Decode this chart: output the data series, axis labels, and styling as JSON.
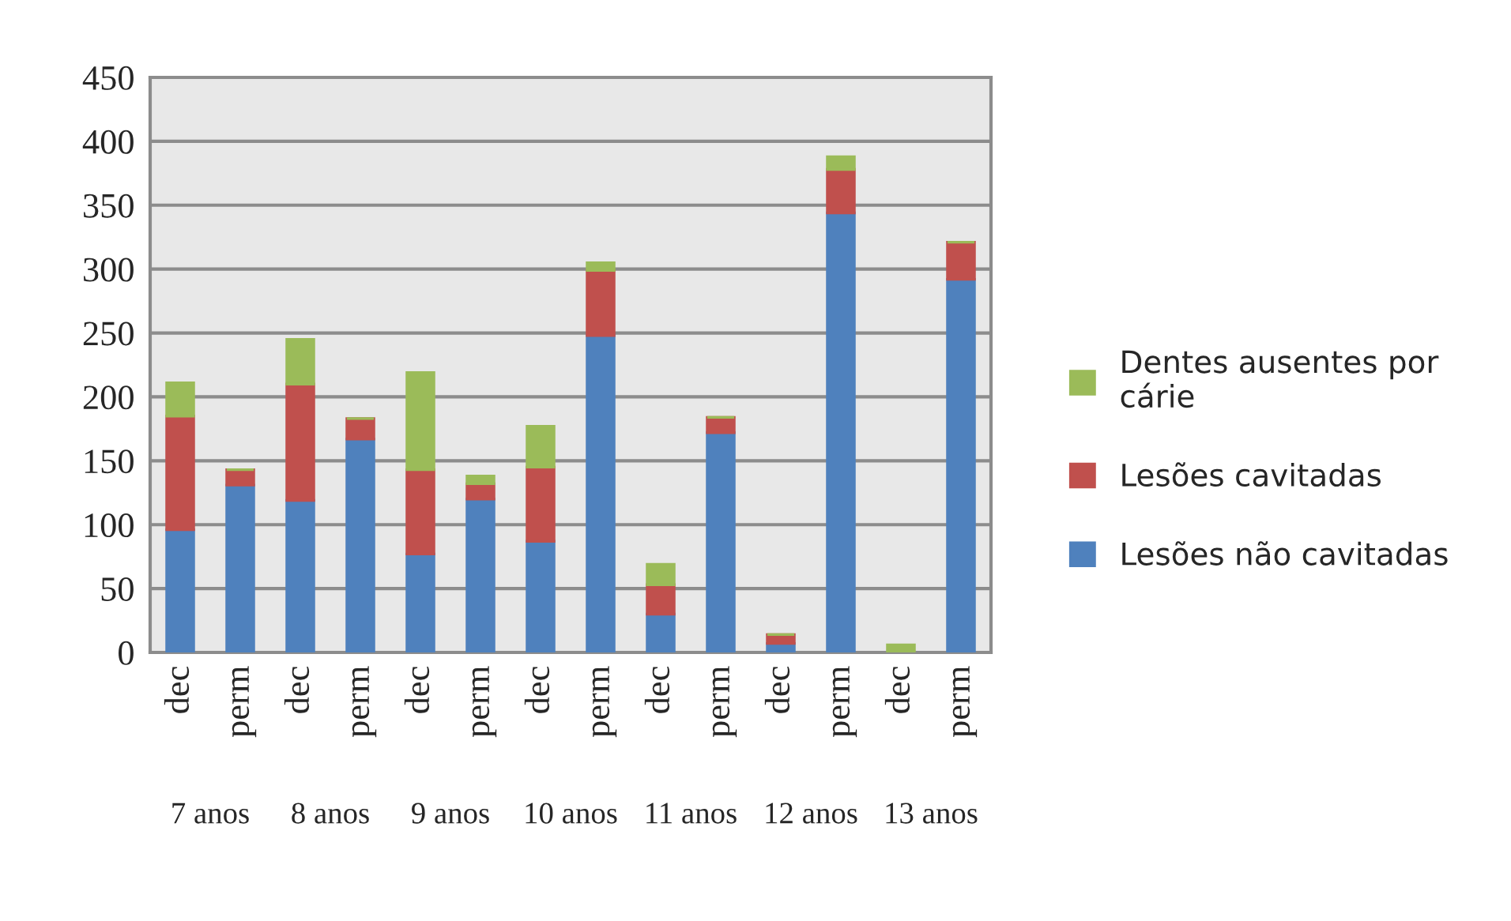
{
  "chart_data": {
    "type": "bar",
    "stacked": true,
    "categories": [
      "dec",
      "perm",
      "dec",
      "perm",
      "dec",
      "perm",
      "dec",
      "perm",
      "dec",
      "perm",
      "dec",
      "perm",
      "dec",
      "perm"
    ],
    "annotations": [
      "7 anos",
      "8 anos",
      "9 anos",
      "10 anos",
      "11 anos",
      "12 anos",
      "13 anos"
    ],
    "series": [
      {
        "name": "Lesões não cavitadas",
        "color": "#4f81bd",
        "values": [
          96,
          131,
          119,
          167,
          77,
          120,
          87,
          248,
          30,
          172,
          7,
          344,
          0,
          292
        ]
      },
      {
        "name": "Lesões cavitadas",
        "color": "#c0504d",
        "values": [
          89,
          12,
          91,
          16,
          66,
          12,
          58,
          51,
          23,
          12,
          7,
          34,
          0,
          29
        ]
      },
      {
        "name": "Dentes ausentes por cárie",
        "color": "#9bbb59",
        "values": [
          26,
          0,
          35,
          0,
          76,
          6,
          32,
          6,
          16,
          0,
          0,
          10,
          6,
          0
        ]
      }
    ],
    "ylim": [
      0,
      450
    ],
    "yticks": [
      0,
      50,
      100,
      150,
      200,
      250,
      300,
      350,
      400,
      450
    ],
    "grid": "y",
    "legend": "right"
  }
}
